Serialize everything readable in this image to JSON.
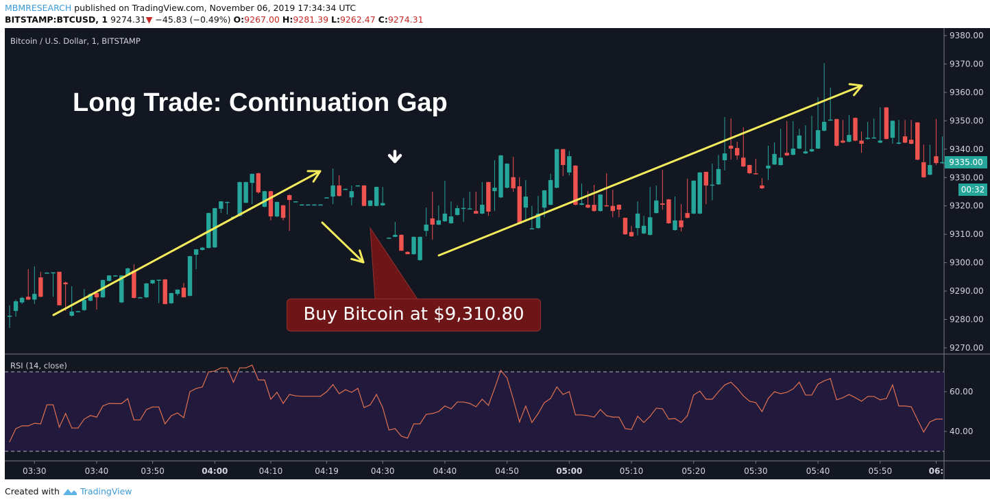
{
  "header": {
    "publisher": "MBMRESEARCH",
    "published_text": "published on TradingView.com, November 06, 2019 17:34:34 UTC",
    "symbol": "BITSTAMP:BTCUSD, 1",
    "last": "9274.31",
    "change": "−45.83 (−0.49%)",
    "o_label": "O:",
    "o": "9267.00",
    "h_label": "H:",
    "h": "9281.39",
    "l_label": "L:",
    "l": "9262.47",
    "c_label": "C:",
    "c": "9274.31"
  },
  "legend": {
    "main": "Bitcoin / U.S. Dollar, 1, BITSTAMP",
    "rsi": "RSI (14, close)"
  },
  "annotations": {
    "title": "Long Trade: Continuation Gap",
    "callout": "Buy Bitcoin at $9,310.80",
    "last_price_label": "9335.00",
    "countdown": "00:32",
    "colors": {
      "arrows": "#f5ec5c",
      "callout": "#6e1518",
      "marker": "#ffffff"
    }
  },
  "footer": {
    "created_with": "Created with",
    "brand": "TradingView"
  },
  "colors": {
    "background": "#131722",
    "up": "#26a69a",
    "down": "#ef5350",
    "rsi_line": "#e07050",
    "rsi_band": "#221a3c"
  },
  "chart_data": [
    {
      "type": "candlestick",
      "title": "Bitcoin / U.S. Dollar, 1, BITSTAMP",
      "ylim": [
        9267,
        9382
      ],
      "y_ticks": [
        "9270.00",
        "9280.00",
        "9290.00",
        "9300.00",
        "9310.00",
        "9320.00",
        "9330.00",
        "9340.00",
        "9350.00",
        "9360.00",
        "9370.00",
        "9380.00"
      ],
      "x_ticks": [
        {
          "label": "03:30",
          "bar": 4,
          "bold": false
        },
        {
          "label": "03:40",
          "bar": 14,
          "bold": false
        },
        {
          "label": "03:50",
          "bar": 23,
          "bold": false
        },
        {
          "label": "04:00",
          "bar": 33,
          "bold": true
        },
        {
          "label": "04:10",
          "bar": 42,
          "bold": false
        },
        {
          "label": "04:19",
          "bar": 51,
          "bold": false
        },
        {
          "label": "04:30",
          "bar": 60,
          "bold": false
        },
        {
          "label": "04:40",
          "bar": 70,
          "bold": false
        },
        {
          "label": "04:50",
          "bar": 80,
          "bold": false
        },
        {
          "label": "05:00",
          "bar": 90,
          "bold": true
        },
        {
          "label": "05:10",
          "bar": 100,
          "bold": false
        },
        {
          "label": "05:20",
          "bar": 110,
          "bold": false
        },
        {
          "label": "05:30",
          "bar": 120,
          "bold": false
        },
        {
          "label": "05:40",
          "bar": 130,
          "bold": false
        },
        {
          "label": "05:50",
          "bar": 140,
          "bold": false
        },
        {
          "label": "06:",
          "bar": 149,
          "bold": true
        }
      ],
      "ohlc_columns": [
        "open",
        "high",
        "low",
        "close"
      ],
      "candles": [
        [
          9281,
          9285,
          9277,
          9281.3
        ],
        [
          9283,
          9287,
          9281,
          9286.4
        ],
        [
          9286,
          9288,
          9285.5,
          9287.6
        ],
        [
          9288,
          9297.7,
          9286.8,
          9287
        ],
        [
          9287,
          9298.7,
          9285.5,
          9289
        ],
        [
          9294.8,
          9296.8,
          9287.8,
          9288
        ],
        [
          9296.4,
          9296.6,
          9296.4,
          9296.5
        ],
        [
          9296.5,
          9296.6,
          9288,
          9296.6
        ],
        [
          9296.8,
          9296.8,
          9285,
          9285
        ],
        [
          9293,
          9293.3,
          9283,
          9292.4
        ],
        [
          9281.3,
          9291.7,
          9281,
          9282.8
        ],
        [
          9282.8,
          9283,
          9282.6,
          9282.9
        ],
        [
          9283.3,
          9290.7,
          9283,
          9286.9
        ],
        [
          9286.6,
          9289.2,
          9286.4,
          9289
        ],
        [
          9289.3,
          9289.5,
          9283.5,
          9287.8
        ],
        [
          9287.8,
          9294,
          9287.6,
          9293.9
        ],
        [
          9293.6,
          9295.6,
          9293.4,
          9295.5
        ],
        [
          9295.5,
          9295.6,
          9295.4,
          9295.5
        ],
        [
          9286,
          9295.6,
          9285.8,
          9295.5
        ],
        [
          9295.5,
          9298.2,
          9295.3,
          9298
        ],
        [
          9297.2,
          9299.4,
          9287.4,
          9287.6
        ],
        [
          9287.8,
          9287.9,
          9287.6,
          9287.8
        ],
        [
          9287.8,
          9292.8,
          9287.6,
          9292.7
        ],
        [
          9292.7,
          9294,
          9292.5,
          9293.9
        ],
        [
          9293.9,
          9294,
          9285.7,
          9294
        ],
        [
          9294.1,
          9294.2,
          9285.4,
          9285.4
        ],
        [
          9285.7,
          9289.4,
          9285.5,
          9289.3
        ],
        [
          9289,
          9290.6,
          9288.4,
          9290.5
        ],
        [
          9291.2,
          9292.9,
          9287.8,
          9287.8
        ],
        [
          9288.3,
          9302.4,
          9288.2,
          9302.3
        ],
        [
          9302.8,
          9304.8,
          9297.7,
          9304.7
        ],
        [
          9304.5,
          9305.5,
          9304.3,
          9305.3
        ],
        [
          9305.2,
          9317.6,
          9305,
          9317.5
        ],
        [
          9305.4,
          9319.3,
          9305.2,
          9319.2
        ],
        [
          9319,
          9321.7,
          9317.5,
          9321.6
        ],
        [
          9321.3,
          9321.5,
          9317,
          9321.4
        ],
        [
          9316,
          9316.3,
          9315.8,
          9316.2
        ],
        [
          9316.5,
          9328.5,
          9316.3,
          9328.4
        ],
        [
          9321.1,
          9328.5,
          9321,
          9328.4
        ],
        [
          9328.1,
          9331.4,
          9320.6,
          9331.3
        ],
        [
          9331.5,
          9331.7,
          9324.3,
          9324.8
        ],
        [
          9319.7,
          9325.3,
          9319.5,
          9325.2
        ],
        [
          9325.2,
          9325.3,
          9314.9,
          9316.3
        ],
        [
          9316.3,
          9321.5,
          9316,
          9321.4
        ],
        [
          9320.2,
          9320.3,
          9314.9,
          9315.8
        ],
        [
          9323.8,
          9324,
          9311.2,
          9322.1
        ],
        [
          9321.6,
          9321.7,
          9321.5,
          9321.6
        ],
        [
          9320.5,
          9320.6,
          9320.4,
          9320.5
        ],
        [
          9320.5,
          9320.6,
          9320.4,
          9320.5
        ],
        [
          9320.5,
          9320.6,
          9320.4,
          9320.5
        ],
        [
          9320.5,
          9320.6,
          9320.4,
          9320.5
        ],
        [
          9323,
          9323.1,
          9322.9,
          9323
        ],
        [
          9323.3,
          9333.2,
          9320.6,
          9327.2
        ],
        [
          9327.2,
          9330.8,
          9323.3,
          9323.5
        ],
        [
          9326,
          9326.1,
          9325.9,
          9326
        ],
        [
          9323,
          9327.2,
          9320.2,
          9325.2
        ],
        [
          9327.2,
          9327.3,
          9327.1,
          9327.2
        ],
        [
          9327.2,
          9327.3,
          9320,
          9320
        ],
        [
          9320,
          9322,
          9319.9,
          9321.9
        ],
        [
          9320,
          9326.8,
          9319.9,
          9326.7
        ],
        [
          9320.2,
          9326.7,
          9320,
          9321
        ],
        [
          9308.8,
          9308.9,
          9308.7,
          9308.8
        ],
        [
          9309.1,
          9314.4,
          9309,
          9309.8
        ],
        [
          9309.8,
          9310,
          9304.2,
          9304.2
        ],
        [
          9303.8,
          9304,
          9303,
          9303
        ],
        [
          9303,
          9309.2,
          9302.8,
          9309.1
        ],
        [
          9300.9,
          9309.2,
          9300.7,
          9309.1
        ],
        [
          9311.2,
          9319.4,
          9309.3,
          9313.4
        ],
        [
          9315.6,
          9325,
          9308.1,
          9313.4
        ],
        [
          9313.4,
          9320.2,
          9313.2,
          9314.9
        ],
        [
          9314.6,
          9328.9,
          9314.4,
          9317.3
        ],
        [
          9313.9,
          9321.6,
          9313.7,
          9316.3
        ],
        [
          9316.8,
          9320.2,
          9316.6,
          9319.2
        ],
        [
          9319.2,
          9322.8,
          9314.4,
          9319.3
        ],
        [
          9319,
          9325,
          9318.8,
          9319.1
        ],
        [
          9318.2,
          9325,
          9317.2,
          9317.3
        ],
        [
          9317.3,
          9328.4,
          9317.1,
          9320.4
        ],
        [
          9328.4,
          9328.5,
          9316.5,
          9318
        ],
        [
          9325.2,
          9336.1,
          9318.2,
          9326.4
        ],
        [
          9323,
          9337.9,
          9322.8,
          9337.8
        ],
        [
          9326.4,
          9335,
          9326.2,
          9334.9
        ],
        [
          9330.1,
          9337.3,
          9325,
          9326.2
        ],
        [
          9326.9,
          9330.1,
          9313.5,
          9313.7
        ],
        [
          9319.4,
          9329.1,
          9314.6,
          9323.3
        ],
        [
          9312,
          9320,
          9311.8,
          9312.1
        ],
        [
          9312.2,
          9323.5,
          9312,
          9317.3
        ],
        [
          9319.4,
          9325.6,
          9316,
          9325.5
        ],
        [
          9320.4,
          9331.3,
          9320.2,
          9329.1
        ],
        [
          9326.4,
          9340.1,
          9326.2,
          9340
        ],
        [
          9340,
          9340.1,
          9330.5,
          9334.4
        ],
        [
          9331.8,
          9339.4,
          9330.7,
          9337.5
        ],
        [
          9334.2,
          9334.3,
          9320.2,
          9320.4
        ],
        [
          9320.4,
          9327.9,
          9320.2,
          9320.9
        ],
        [
          9320.4,
          9325.2,
          9319.2,
          9319.4
        ],
        [
          9320.4,
          9327.4,
          9318,
          9318.2
        ],
        [
          9318.2,
          9324.1,
          9318,
          9324
        ],
        [
          9320.2,
          9331.5,
          9319.8,
          9320
        ],
        [
          9320,
          9325.7,
          9316,
          9318.2
        ],
        [
          9320.4,
          9320.5,
          9316,
          9318.7
        ],
        [
          9315.8,
          9315.9,
          9309.8,
          9310
        ],
        [
          9310.8,
          9313,
          9309.1,
          9309.3
        ],
        [
          9312.2,
          9321.6,
          9309.6,
          9317.3
        ],
        [
          9310.3,
          9316.5,
          9310.1,
          9313
        ],
        [
          9309.8,
          9326.7,
          9309.6,
          9316
        ],
        [
          9317.5,
          9327.2,
          9317.3,
          9321.9
        ],
        [
          9320.9,
          9332.7,
          9318.7,
          9320.4
        ],
        [
          9322.3,
          9322.4,
          9313.7,
          9313.9
        ],
        [
          9311.5,
          9323.3,
          9311.3,
          9314.9
        ],
        [
          9314.9,
          9320.6,
          9311,
          9312.5
        ],
        [
          9317.5,
          9329.6,
          9315.6,
          9315.8
        ],
        [
          9317.3,
          9329,
          9317.1,
          9328.9
        ],
        [
          9317.3,
          9331.9,
          9317.1,
          9331.8
        ],
        [
          9332,
          9332.1,
          9320.6,
          9327.2
        ],
        [
          9327.4,
          9334.9,
          9322,
          9327.5
        ],
        [
          9327.6,
          9338,
          9327.4,
          9333
        ],
        [
          9336.1,
          9351.3,
          9332.5,
          9338.5
        ],
        [
          9341.2,
          9350.8,
          9336.3,
          9340.2
        ],
        [
          9340.4,
          9342.6,
          9336.3,
          9337.8
        ],
        [
          9337,
          9347.7,
          9333.7,
          9333.9
        ],
        [
          9334.4,
          9334.5,
          9331.3,
          9331.5
        ],
        [
          9331.5,
          9336.6,
          9331.1,
          9331.3
        ],
        [
          9327.2,
          9329.8,
          9326,
          9326.2
        ],
        [
          9333.2,
          9341.2,
          9329.1,
          9334.2
        ],
        [
          9334.6,
          9342.4,
          9334.4,
          9338.3
        ],
        [
          9334.4,
          9347.2,
          9334.2,
          9337
        ],
        [
          9338.7,
          9349.9,
          9337.6,
          9337.8
        ],
        [
          9338,
          9349.9,
          9337.8,
          9340.2
        ],
        [
          9340.2,
          9347.2,
          9340,
          9344.8
        ],
        [
          9338.5,
          9348.4,
          9338.3,
          9339.2
        ],
        [
          9339.2,
          9351.8,
          9339,
          9340
        ],
        [
          9340.2,
          9358.3,
          9340,
          9346.7
        ],
        [
          9346.5,
          9370.3,
          9346.3,
          9349.6
        ],
        [
          9350.3,
          9361.7,
          9350.1,
          9350.4
        ],
        [
          9350.6,
          9350.7,
          9341,
          9341.2
        ],
        [
          9343,
          9350.3,
          9342.1,
          9342.3
        ],
        [
          9342.6,
          9352,
          9342.4,
          9345
        ],
        [
          9351,
          9351.1,
          9342.8,
          9343
        ],
        [
          9343,
          9346.2,
          9338.7,
          9341.9
        ],
        [
          9343.6,
          9349.6,
          9343.4,
          9344
        ],
        [
          9344,
          9350.8,
          9343.8,
          9344.1
        ],
        [
          9342.3,
          9354.7,
          9342.1,
          9343
        ],
        [
          9354.7,
          9354.8,
          9343.4,
          9343.6
        ],
        [
          9344,
          9350.1,
          9341.9,
          9350
        ],
        [
          9341.9,
          9350.3,
          9341.7,
          9342.3
        ],
        [
          9344.5,
          9350.3,
          9342.1,
          9342.3
        ],
        [
          9343.3,
          9350.3,
          9341.7,
          9341.9
        ],
        [
          9349.4,
          9349.5,
          9336.1,
          9336.3
        ],
        [
          9335.4,
          9341.6,
          9329.9,
          9330.1
        ],
        [
          9331,
          9341.6,
          9330.8,
          9334.4
        ],
        [
          9337.5,
          9350.6,
          9334.4,
          9335.1
        ],
        [
          9335.1,
          9344.5,
          9334.9,
          9335.4
        ]
      ]
    },
    {
      "type": "line",
      "title": "RSI (14, close)",
      "ylim": [
        22,
        77
      ],
      "y_ticks": [
        "40.00",
        "60.00"
      ],
      "bands": [
        30,
        70
      ],
      "values": [
        34.8,
        41.4,
        42.8,
        42.8,
        44.1,
        43.8,
        53.4,
        53.4,
        42.1,
        49,
        41.7,
        41.7,
        46.2,
        48,
        47.2,
        52.8,
        54.1,
        54,
        54,
        56.5,
        45.8,
        45.8,
        51,
        52.3,
        52.3,
        43.8,
        47.9,
        49.3,
        46.9,
        60,
        61.6,
        62.4,
        70,
        70.4,
        72,
        72,
        64.8,
        72,
        72,
        73.4,
        65.9,
        65.9,
        56.2,
        59.7,
        54.1,
        58.6,
        57.9,
        57.7,
        57.7,
        57.7,
        57.7,
        60,
        63.6,
        59,
        61,
        59.7,
        61.7,
        52,
        53.4,
        58.6,
        52,
        40.7,
        41.4,
        37.6,
        36.6,
        43.8,
        43.8,
        48.6,
        49,
        50,
        52.8,
        51.4,
        54.8,
        54.8,
        54.1,
        52.4,
        56.2,
        53.1,
        61.7,
        70.7,
        66.9,
        56.2,
        44.8,
        52.8,
        44.5,
        49,
        54.5,
        56.6,
        62.4,
        58.6,
        60,
        48.3,
        48.3,
        47.9,
        47.2,
        51,
        47.9,
        47.2,
        47.2,
        41.4,
        41,
        47.6,
        44.5,
        47.6,
        51.7,
        51.4,
        46.2,
        46.5,
        44.5,
        47.9,
        58.3,
        60.3,
        56.2,
        56.2,
        60,
        63.4,
        64.8,
        61.7,
        57.9,
        55.2,
        54.5,
        50,
        56.6,
        60,
        59,
        59.7,
        61.4,
        64.8,
        58.3,
        58.3,
        63.8,
        65.5,
        66.6,
        55.9,
        57,
        58.6,
        57,
        55.2,
        57.6,
        57.6,
        55.9,
        56.6,
        63.4,
        52.8,
        52.8,
        52.4,
        45.9,
        39.7,
        44.8,
        46.2,
        46.2
      ]
    }
  ]
}
